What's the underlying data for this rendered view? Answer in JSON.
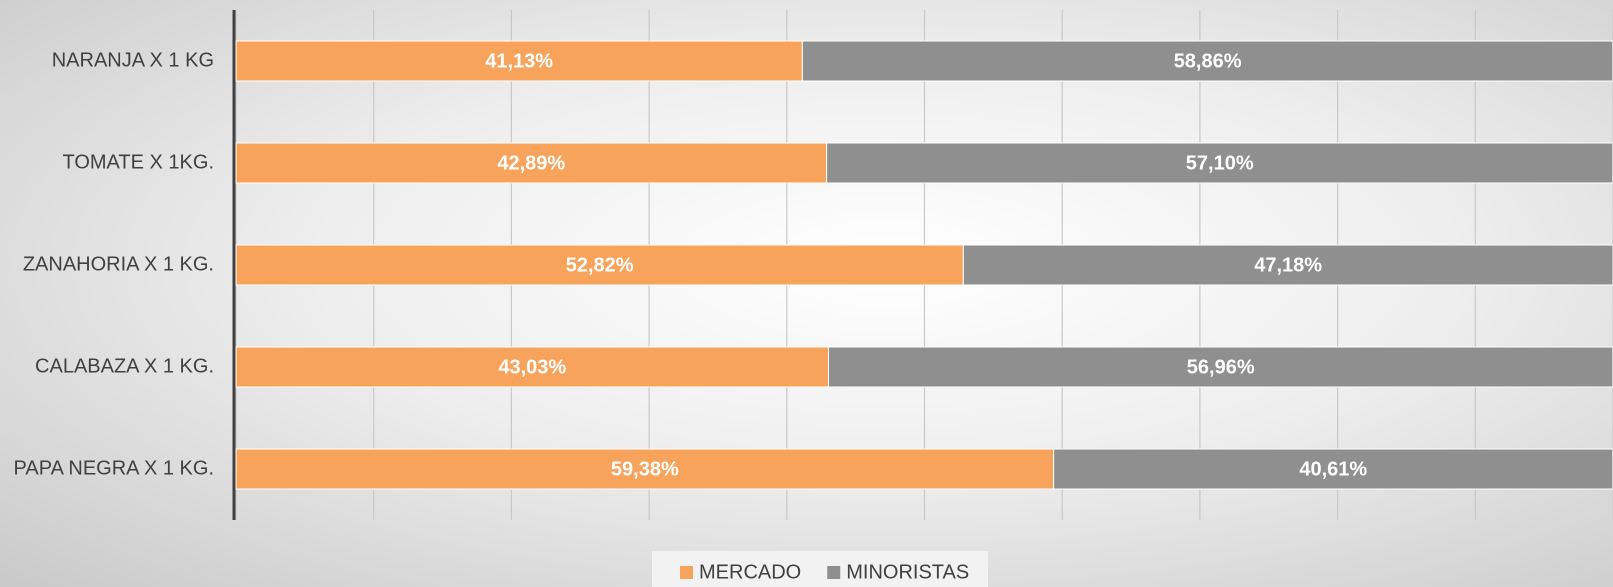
{
  "chart_data": {
    "type": "bar",
    "orientation": "horizontal",
    "stacked": true,
    "categories": [
      "NARANJA X 1 KG",
      "TOMATE X 1KG.",
      "ZANAHORIA X 1 KG.",
      "CALABAZA X 1 KG.",
      "PAPA NEGRA X 1 KG."
    ],
    "series": [
      {
        "name": "MERCADO",
        "color": "#f7a35c",
        "values": [
          41.13,
          42.89,
          52.82,
          43.03,
          59.38
        ],
        "value_labels": [
          "41,13%",
          "42,89%",
          "52,82%",
          "43,03%",
          "59,38%"
        ]
      },
      {
        "name": "MINORISTAS",
        "color": "#8f8f8f",
        "values": [
          58.86,
          57.1,
          47.18,
          56.96,
          40.61
        ],
        "value_labels": [
          "58,86%",
          "57,10%",
          "47,18%",
          "56,96%",
          "40,61%"
        ]
      }
    ],
    "xlim": [
      0,
      100
    ],
    "xticks": [
      0,
      10,
      20,
      30,
      40,
      50,
      60,
      70,
      80,
      90,
      100
    ],
    "grid": true,
    "legend": "bottom"
  }
}
